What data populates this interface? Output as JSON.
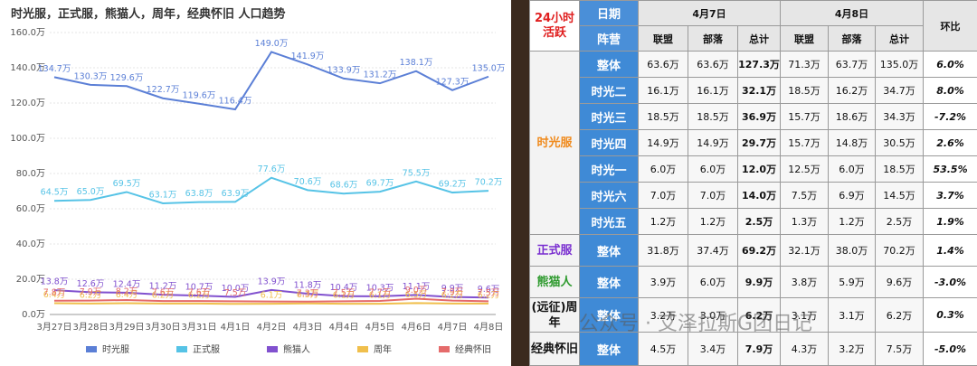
{
  "chart_data": {
    "type": "line",
    "title": "时光服，正式服，熊猫人，周年，经典怀旧 人口趋势",
    "categories": [
      "3月27日",
      "3月28日",
      "3月29日",
      "3月30日",
      "3月31日",
      "4月1日",
      "4月2日",
      "4月3日",
      "4月4日",
      "4月5日",
      "4月6日",
      "4月7日",
      "4月8日"
    ],
    "ylim": [
      0,
      160
    ],
    "yticks": [
      {
        "value": 0,
        "label": "0.0万"
      },
      {
        "value": 20,
        "label": "20.0万"
      },
      {
        "value": 40,
        "label": "40.0万"
      },
      {
        "value": 60,
        "label": "60.0万"
      },
      {
        "value": 80,
        "label": "80.0万"
      },
      {
        "value": 100,
        "label": "100.0万"
      },
      {
        "value": 120,
        "label": "120.0万"
      },
      {
        "value": 140,
        "label": "140.0万"
      },
      {
        "value": 160,
        "label": "160.0万"
      }
    ],
    "grid": true,
    "legend": "bottom",
    "series": [
      {
        "name": "时光服",
        "color": "#5b7fd6",
        "values": [
          134.7,
          130.3,
          129.6,
          122.7,
          119.6,
          116.4,
          149.0,
          141.9,
          133.9,
          131.2,
          138.1,
          127.3,
          135.0
        ],
        "value_labels": [
          "134.7万",
          "130.3万",
          "129.6万",
          "122.7万",
          "119.6万",
          "116.4万",
          "149.0万",
          "141.9万",
          "133.9万",
          "131.2万",
          "138.1万",
          "127.3万",
          "135.0万"
        ]
      },
      {
        "name": "正式服",
        "color": "#56c3e6",
        "values": [
          64.5,
          65.0,
          69.5,
          63.1,
          63.8,
          63.9,
          77.6,
          70.6,
          68.6,
          69.7,
          75.5,
          69.2,
          70.2
        ],
        "value_labels": [
          "64.5万",
          "65.0万",
          "69.5万",
          "63.1万",
          "63.8万",
          "63.9万",
          "77.6万",
          "70.6万",
          "68.6万",
          "69.7万",
          "75.5万",
          "69.2万",
          "70.2万"
        ]
      },
      {
        "name": "熊猫人",
        "color": "#8151cf",
        "values": [
          13.8,
          12.6,
          12.4,
          11.2,
          10.7,
          10.0,
          13.9,
          11.8,
          10.4,
          10.3,
          11.1,
          9.9,
          9.6
        ],
        "value_labels": [
          "13.8万",
          "12.6万",
          "12.4万",
          "11.2万",
          "10.7万",
          "10.0万",
          "13.9万",
          "11.8万",
          "10.4万",
          "10.3万",
          "11.1万",
          "9.9万",
          "9.6万"
        ]
      },
      {
        "name": "周年",
        "color": "#f0bf4c",
        "values": [
          6.4,
          6.2,
          6.4,
          6.2,
          6.2,
          6.0,
          6.1,
          6.3,
          6.1,
          6.1,
          6.5,
          6.2,
          6.2
        ],
        "value_labels": [
          "6.4万",
          "6.2万",
          "6.4万",
          "6.2万",
          "6.2万",
          null,
          "6.1万",
          "6.3万",
          "6.1万",
          "6.1万",
          "6.5万",
          "6.2万",
          "6.2万"
        ]
      },
      {
        "name": "经典怀旧",
        "color": "#e56b6b",
        "values": [
          7.8,
          7.9,
          8.2,
          7.6,
          7.6,
          7.5,
          7.4,
          7.3,
          7.5,
          7.7,
          9.0,
          7.9,
          7.5
        ],
        "value_labels": [
          "7.8万",
          "7.9万",
          "8.2万",
          "7.6万",
          "7.6万",
          "7.5万",
          null,
          "7.3万",
          "7.5万",
          "7.7万",
          "9.0万",
          "7.9万",
          "7.5万"
        ]
      }
    ]
  },
  "table": {
    "corner": "24小时活跃",
    "date_label": "日期",
    "camp_label": "阵营",
    "dates": [
      "4月7日",
      "4月8日"
    ],
    "change_label": "环比",
    "columns": [
      "联盟",
      "部落",
      "总计",
      "联盟",
      "部落",
      "总计"
    ],
    "groups": [
      {
        "name": "时光服",
        "rows": [
          {
            "label": "整体",
            "cells": [
              "63.6万",
              "63.6万",
              "127.3万",
              "71.3万",
              "63.7万",
              "135.0万",
              "6.0%"
            ]
          },
          {
            "label": "时光二",
            "cells": [
              "16.1万",
              "16.1万",
              "32.1万",
              "18.5万",
              "16.2万",
              "34.7万",
              "8.0%"
            ]
          },
          {
            "label": "时光三",
            "cells": [
              "18.5万",
              "18.5万",
              "36.9万",
              "15.7万",
              "18.6万",
              "34.3万",
              "-7.2%"
            ]
          },
          {
            "label": "时光四",
            "cells": [
              "14.9万",
              "14.9万",
              "29.7万",
              "15.7万",
              "14.8万",
              "30.5万",
              "2.6%"
            ]
          },
          {
            "label": "时光一",
            "cells": [
              "6.0万",
              "6.0万",
              "12.0万",
              "12.5万",
              "6.0万",
              "18.5万",
              "53.5%"
            ]
          },
          {
            "label": "时光六",
            "cells": [
              "7.0万",
              "7.0万",
              "14.0万",
              "7.5万",
              "6.9万",
              "14.5万",
              "3.7%"
            ]
          },
          {
            "label": "时光五",
            "cells": [
              "1.2万",
              "1.2万",
              "2.5万",
              "1.3万",
              "1.2万",
              "2.5万",
              "1.9%"
            ]
          }
        ]
      },
      {
        "name": "正式服",
        "rows": [
          {
            "label": "整体",
            "cells": [
              "31.8万",
              "37.4万",
              "69.2万",
              "32.1万",
              "38.0万",
              "70.2万",
              "1.4%"
            ]
          }
        ]
      },
      {
        "name": "熊猫人",
        "rows": [
          {
            "label": "整体",
            "cells": [
              "3.9万",
              "6.0万",
              "9.9万",
              "3.8万",
              "5.9万",
              "9.6万",
              "-3.0%"
            ]
          }
        ]
      },
      {
        "name": "(远征)周年",
        "rows": [
          {
            "label": "整体",
            "cells": [
              "3.2万",
              "3.0万",
              "6.2万",
              "3.1万",
              "3.1万",
              "6.2万",
              "0.3%"
            ]
          }
        ]
      },
      {
        "name": "经典怀旧",
        "rows": [
          {
            "label": "整体",
            "cells": [
              "4.5万",
              "3.4万",
              "7.9万",
              "4.3万",
              "3.2万",
              "7.5万",
              "-5.0%"
            ]
          }
        ]
      }
    ]
  },
  "watermark": "公众号 · 艾泽拉斯G团日记"
}
